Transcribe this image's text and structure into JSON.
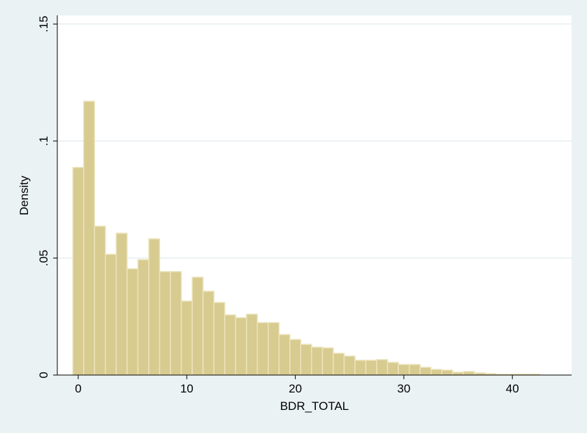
{
  "chart_data": {
    "type": "histogram",
    "x_label": "BDR_TOTAL",
    "y_label": "Density",
    "bins": [
      -0.5,
      0.5,
      1.5,
      2.5,
      3.5,
      4.5,
      5.5,
      6.5,
      7.5,
      8.5,
      9.5,
      10.5,
      11.5,
      12.5,
      13.5,
      14.5,
      15.5,
      16.5,
      17.5,
      18.5,
      19.5,
      20.5,
      21.5,
      22.5,
      23.5,
      24.5,
      25.5,
      26.5,
      27.5,
      28.5,
      29.5,
      30.5,
      31.5,
      32.5,
      33.5,
      34.5,
      35.5,
      36.5,
      37.5,
      38.5,
      39.5,
      40.5,
      41.5,
      42.5
    ],
    "values": [
      0.0887,
      0.117,
      0.0636,
      0.0516,
      0.0606,
      0.0454,
      0.0493,
      0.0582,
      0.0442,
      0.0442,
      0.0316,
      0.0418,
      0.0358,
      0.031,
      0.0257,
      0.0245,
      0.026,
      0.0224,
      0.0224,
      0.0173,
      0.0152,
      0.0131,
      0.0119,
      0.0116,
      0.0093,
      0.0081,
      0.0063,
      0.0063,
      0.0066,
      0.0054,
      0.0045,
      0.0045,
      0.0033,
      0.0024,
      0.0021,
      0.0012,
      0.0015,
      0.0009,
      0.0006,
      0.0003,
      0.0003,
      0.0004,
      0.0004
    ],
    "color": "#d7cb90",
    "xlim": [
      -1.93,
      45.46
    ],
    "ylim": [
      0,
      0.1537
    ],
    "xticks": [
      0,
      10,
      20,
      30,
      40
    ],
    "yticks": [
      0,
      {
        "value": 0.05,
        "label": ".05"
      },
      {
        "value": 0.1,
        "label": ".1"
      },
      {
        "value": 0.15,
        "label": ".15"
      }
    ],
    "grid": true
  }
}
